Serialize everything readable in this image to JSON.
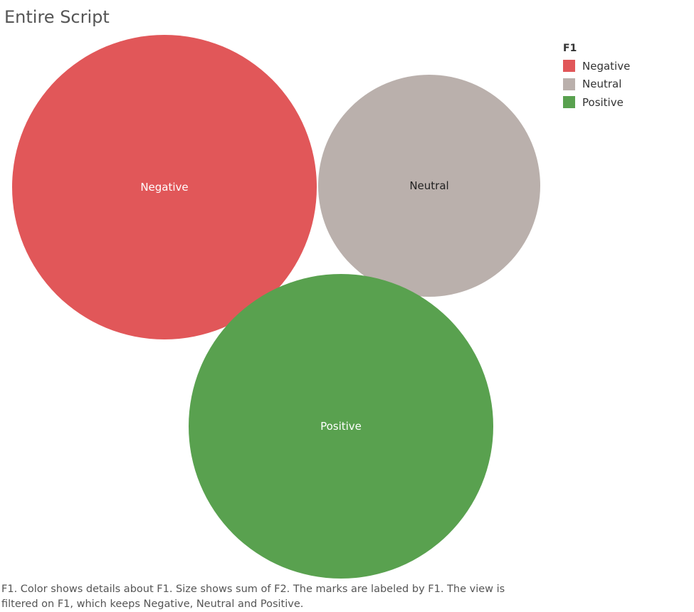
{
  "title": "Entire Script",
  "legend": {
    "title": "F1",
    "items": [
      {
        "label": "Negative",
        "color": "#e15759"
      },
      {
        "label": "Neutral",
        "color": "#bab0ac"
      },
      {
        "label": "Positive",
        "color": "#59a14f"
      }
    ]
  },
  "chart_data": {
    "type": "bubble",
    "color_field": "F1",
    "size_field": "sum of F2",
    "bubbles": [
      {
        "label": "Negative",
        "color": "#e15759",
        "label_color": "#ffffff"
      },
      {
        "label": "Neutral",
        "color": "#bab0ac",
        "label_color": "#222222"
      },
      {
        "label": "Positive",
        "color": "#59a14f",
        "label_color": "#ffffff"
      }
    ]
  },
  "caption": "F1.  Color shows details about F1.  Size shows sum of F2.  The marks are labeled by F1. The view is filtered on F1, which keeps Negative, Neutral and Positive."
}
